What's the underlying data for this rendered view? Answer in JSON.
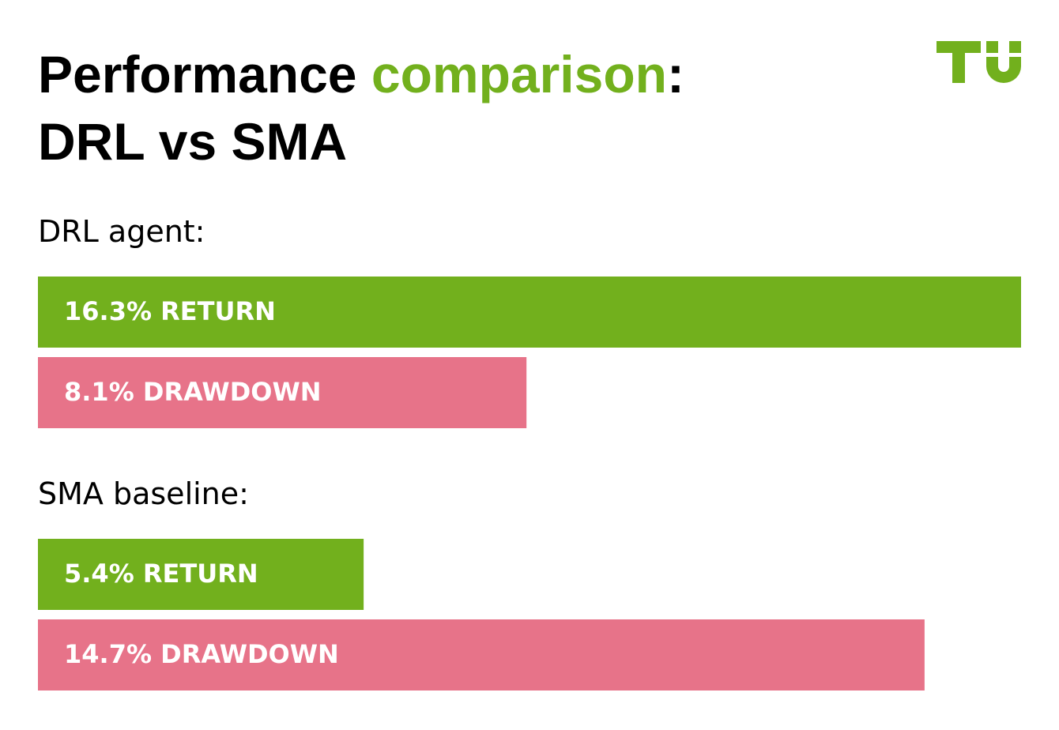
{
  "chart_data": {
    "type": "bar",
    "title_lines": [
      [
        "Performance ",
        "comparison",
        ":"
      ],
      [
        "DRL vs SMA"
      ]
    ],
    "groups": [
      {
        "name": "DRL agent:",
        "values": [
          16.3,
          8.1
        ],
        "value_labels": [
          "16.3% RETURN",
          "8.1% DRAWDOWN"
        ],
        "colors": [
          "#72b01d",
          "#e77389"
        ]
      },
      {
        "name": "SMA baseline:",
        "values": [
          5.4,
          14.7
        ],
        "value_labels": [
          "5.4% RETURN",
          "14.7% DRAWDOWN"
        ],
        "colors": [
          "#72b01d",
          "#e77389"
        ]
      }
    ]
  }
}
